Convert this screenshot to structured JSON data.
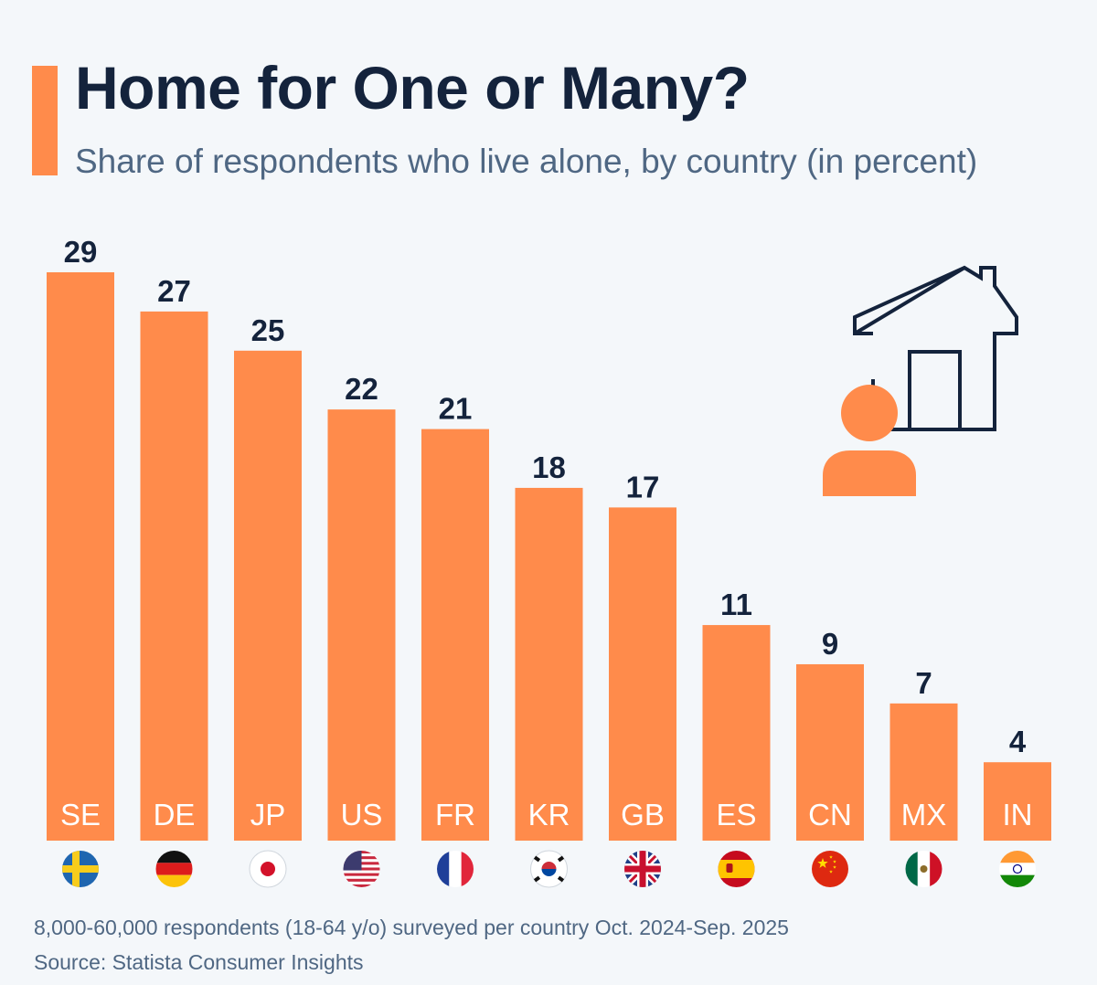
{
  "header": {
    "title": "Home for One or Many?",
    "subtitle": "Share of respondents who live alone, by country (in percent)"
  },
  "footer": {
    "note": "8,000-60,000 respondents (18-64 y/o) surveyed per country Oct. 2024-Sep. 2025",
    "source": "Source: Statista Consumer Insights"
  },
  "colors": {
    "bar": "#ff8b4b",
    "accent": "#ff8b4b",
    "title": "#14233c",
    "subtitle": "#4f6783"
  },
  "chart_data": {
    "type": "bar",
    "title": "Home for One or Many?",
    "subtitle": "Share of respondents who live alone, by country (in percent)",
    "xlabel": "",
    "ylabel": "",
    "ylim": [
      0,
      29
    ],
    "grid": false,
    "categories": [
      "SE",
      "DE",
      "JP",
      "US",
      "FR",
      "KR",
      "GB",
      "ES",
      "CN",
      "MX",
      "IN"
    ],
    "values": [
      29,
      27,
      25,
      22,
      21,
      18,
      17,
      11,
      9,
      7,
      4
    ],
    "flags": [
      "flag-sweden-icon",
      "flag-germany-icon",
      "flag-japan-icon",
      "flag-usa-icon",
      "flag-france-icon",
      "flag-south-korea-icon",
      "flag-uk-icon",
      "flag-spain-icon",
      "flag-china-icon",
      "flag-mexico-icon",
      "flag-india-icon"
    ]
  }
}
